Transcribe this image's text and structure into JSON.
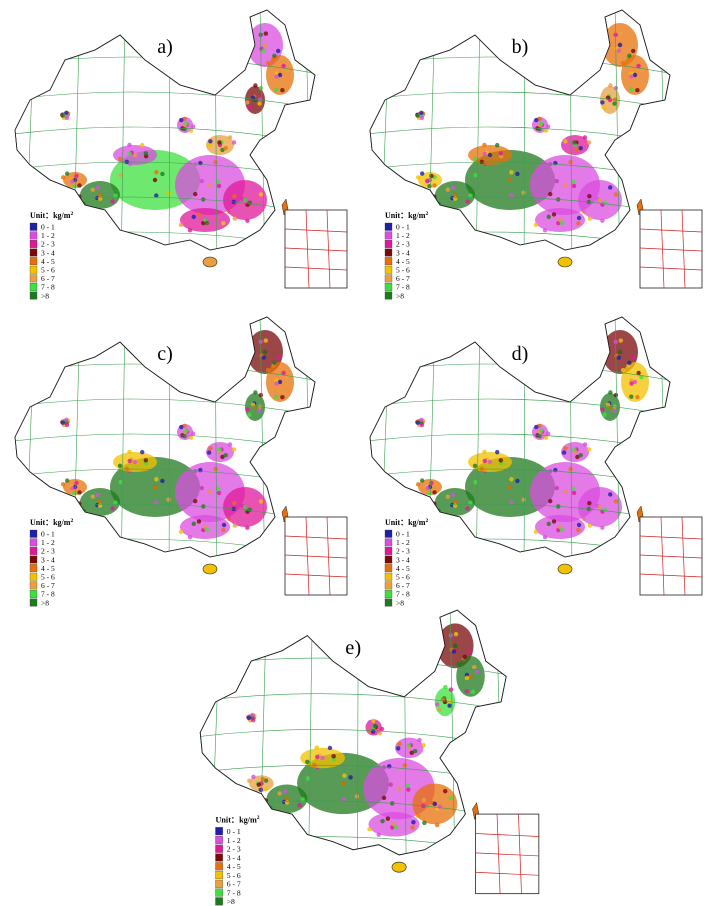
{
  "panels": [
    {
      "label": "a)"
    },
    {
      "label": "b)"
    },
    {
      "label": "c)"
    },
    {
      "label": "d)"
    },
    {
      "label": "e)"
    }
  ],
  "legend": {
    "title": "Unit：kg/m",
    "title_sup": "2",
    "items": [
      {
        "label": "0 - 1",
        "color": "#1f1fa8"
      },
      {
        "label": "1 - 2",
        "color": "#d94ee0"
      },
      {
        "label": "2 - 3",
        "color": "#e0199a"
      },
      {
        "label": "3 - 4",
        "color": "#7a0a0a"
      },
      {
        "label": "4 - 5",
        "color": "#e8700a"
      },
      {
        "label": "5 - 6",
        "color": "#f2c200"
      },
      {
        "label": "6 - 7",
        "color": "#e8a040"
      },
      {
        "label": "7 - 8",
        "color": "#3ee03e"
      },
      {
        "label": ">8",
        "color": "#1f7a1f"
      }
    ]
  }
}
